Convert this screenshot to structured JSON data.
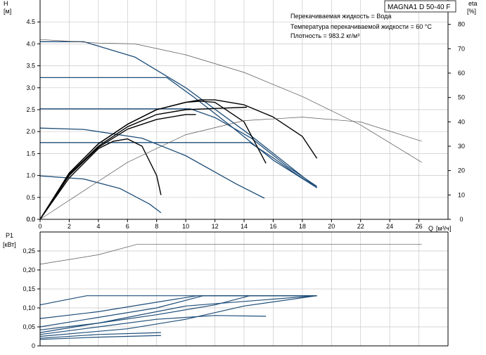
{
  "chart_data": [
    {
      "type": "line",
      "title": "MAGNA1 D 50-40 F",
      "info_lines": [
        "Перекачиваемая жидкость = Вода",
        "Температура перекачиваемой жидкости = 60 °C",
        "Плотность = 983.2 кг/м³"
      ],
      "ylabel": "H",
      "yunit": "[м]",
      "y2label": "eta",
      "y2unit": "[%]",
      "xlabel": "Q",
      "xunit": "[м³/ч]",
      "xlim": [
        0,
        28
      ],
      "ylim": [
        0,
        5
      ],
      "y2lim": [
        0,
        90
      ],
      "x_ticks": [
        0,
        2,
        4,
        6,
        8,
        10,
        12,
        14,
        16,
        18,
        20,
        22,
        24,
        26
      ],
      "y_ticks": [
        "0.0",
        "0.5",
        "1.0",
        "1.5",
        "2.0",
        "2.5",
        "3.0",
        "3.5",
        "4.0",
        "4.5"
      ],
      "y2_ticks": [
        "0",
        "10",
        "20",
        "30",
        "40",
        "50",
        "60",
        "70",
        "80"
      ],
      "grid": true,
      "colors": {
        "pump_curve": "#1f4e79",
        "efficiency": "#000000",
        "grid": "#c8c8c8",
        "envelope": "#555555"
      },
      "series": [
        {
          "kind": "head",
          "x": [
            0,
            3,
            6.5,
            10,
            14.3,
            19
          ],
          "y": [
            4.05,
            4.05,
            3.7,
            3.0,
            1.95,
            0.72
          ]
        },
        {
          "kind": "head",
          "x": [
            0,
            8.7,
            10.5,
            13,
            16,
            19
          ],
          "y": [
            3.23,
            3.23,
            2.8,
            2.15,
            1.35,
            0.72
          ]
        },
        {
          "kind": "head",
          "x": [
            0,
            10.3,
            12,
            14.5,
            17,
            19
          ],
          "y": [
            2.52,
            2.52,
            2.32,
            1.85,
            1.2,
            0.75
          ]
        },
        {
          "kind": "head",
          "x": [
            0,
            14.4,
            16,
            17.5,
            19
          ],
          "y": [
            1.75,
            1.75,
            1.4,
            1.05,
            0.72
          ]
        },
        {
          "kind": "head",
          "x": [
            0,
            3,
            7,
            10,
            13.5,
            15.4
          ],
          "y": [
            2.08,
            2.05,
            1.85,
            1.45,
            0.8,
            0.48
          ]
        },
        {
          "kind": "head",
          "x": [
            0,
            3,
            5.5,
            7.5,
            8.3
          ],
          "y": [
            0.99,
            0.92,
            0.7,
            0.35,
            0.15
          ]
        },
        {
          "kind": "eff",
          "x": [
            0,
            2,
            4,
            6,
            8,
            10,
            11,
            12,
            14,
            16,
            18,
            19
          ],
          "y": [
            0,
            19,
            31,
            39,
            45,
            48,
            49,
            49,
            47,
            42,
            34,
            25
          ]
        },
        {
          "kind": "eff",
          "x": [
            0,
            2,
            4,
            6,
            8,
            10,
            11,
            12,
            14,
            15.5
          ],
          "y": [
            0,
            19,
            31,
            39,
            45,
            48,
            48.5,
            48,
            40,
            23
          ]
        },
        {
          "kind": "eff",
          "x": [
            0,
            2,
            4,
            6,
            8,
            10,
            12,
            14.2
          ],
          "y": [
            0,
            18.5,
            30,
            38,
            43,
            45,
            45.5,
            46
          ]
        },
        {
          "kind": "eff",
          "x": [
            0,
            2,
            4,
            6,
            8,
            10,
            10.7
          ],
          "y": [
            0,
            18,
            29.5,
            37,
            41,
            43,
            43
          ]
        },
        {
          "kind": "eff",
          "x": [
            0,
            2,
            4,
            5,
            6,
            7,
            8,
            8.3
          ],
          "y": [
            0,
            17,
            29,
            32,
            33,
            30,
            18,
            10
          ]
        },
        {
          "kind": "envelope",
          "x": [
            0,
            4,
            6.5,
            10,
            14,
            18,
            22,
            26.2
          ],
          "y": [
            4.1,
            4.02,
            4.0,
            3.75,
            3.35,
            2.8,
            2.15,
            1.3
          ]
        },
        {
          "kind": "envelope",
          "x": [
            0,
            3,
            6,
            10,
            14,
            18,
            22,
            26.2
          ],
          "y": [
            0,
            0.65,
            1.3,
            1.93,
            2.25,
            2.33,
            2.22,
            1.78
          ]
        }
      ]
    },
    {
      "type": "line",
      "ylabel": "P1",
      "yunit": "[кВт]",
      "xlim": [
        0,
        28
      ],
      "ylim": [
        0,
        0.3
      ],
      "y_ticks": [
        "0",
        "0,05",
        "0,10",
        "0,15",
        "0,20",
        "0,25"
      ],
      "grid": true,
      "series": [
        {
          "x": [
            0,
            4,
            6.7,
            26.2
          ],
          "y": [
            0.215,
            0.24,
            0.268,
            0.268
          ]
        },
        {
          "x": [
            0,
            3.2,
            19
          ],
          "y": [
            0.108,
            0.132,
            0.132
          ]
        },
        {
          "x": [
            0,
            4,
            8,
            10.8,
            19
          ],
          "y": [
            0.072,
            0.09,
            0.115,
            0.132,
            0.132
          ]
        },
        {
          "x": [
            0,
            4,
            8,
            11.2,
            19
          ],
          "y": [
            0.05,
            0.075,
            0.1,
            0.132,
            0.132
          ]
        },
        {
          "x": [
            0,
            4,
            8,
            12,
            14.4,
            19
          ],
          "y": [
            0.042,
            0.06,
            0.082,
            0.108,
            0.132,
            0.132
          ]
        },
        {
          "x": [
            0,
            4,
            8,
            10,
            19
          ],
          "y": [
            0.035,
            0.06,
            0.09,
            0.105,
            0.132
          ]
        },
        {
          "x": [
            0,
            6,
            10,
            14,
            19
          ],
          "y": [
            0.025,
            0.045,
            0.07,
            0.105,
            0.132
          ]
        },
        {
          "x": [
            0,
            4,
            8,
            12,
            15.5
          ],
          "y": [
            0.03,
            0.05,
            0.07,
            0.08,
            0.078
          ]
        },
        {
          "x": [
            0,
            4,
            8.3
          ],
          "y": [
            0.02,
            0.03,
            0.035
          ]
        },
        {
          "x": [
            0,
            4,
            8,
            8.3
          ],
          "y": [
            0.017,
            0.023,
            0.027,
            0.027
          ]
        }
      ]
    }
  ]
}
